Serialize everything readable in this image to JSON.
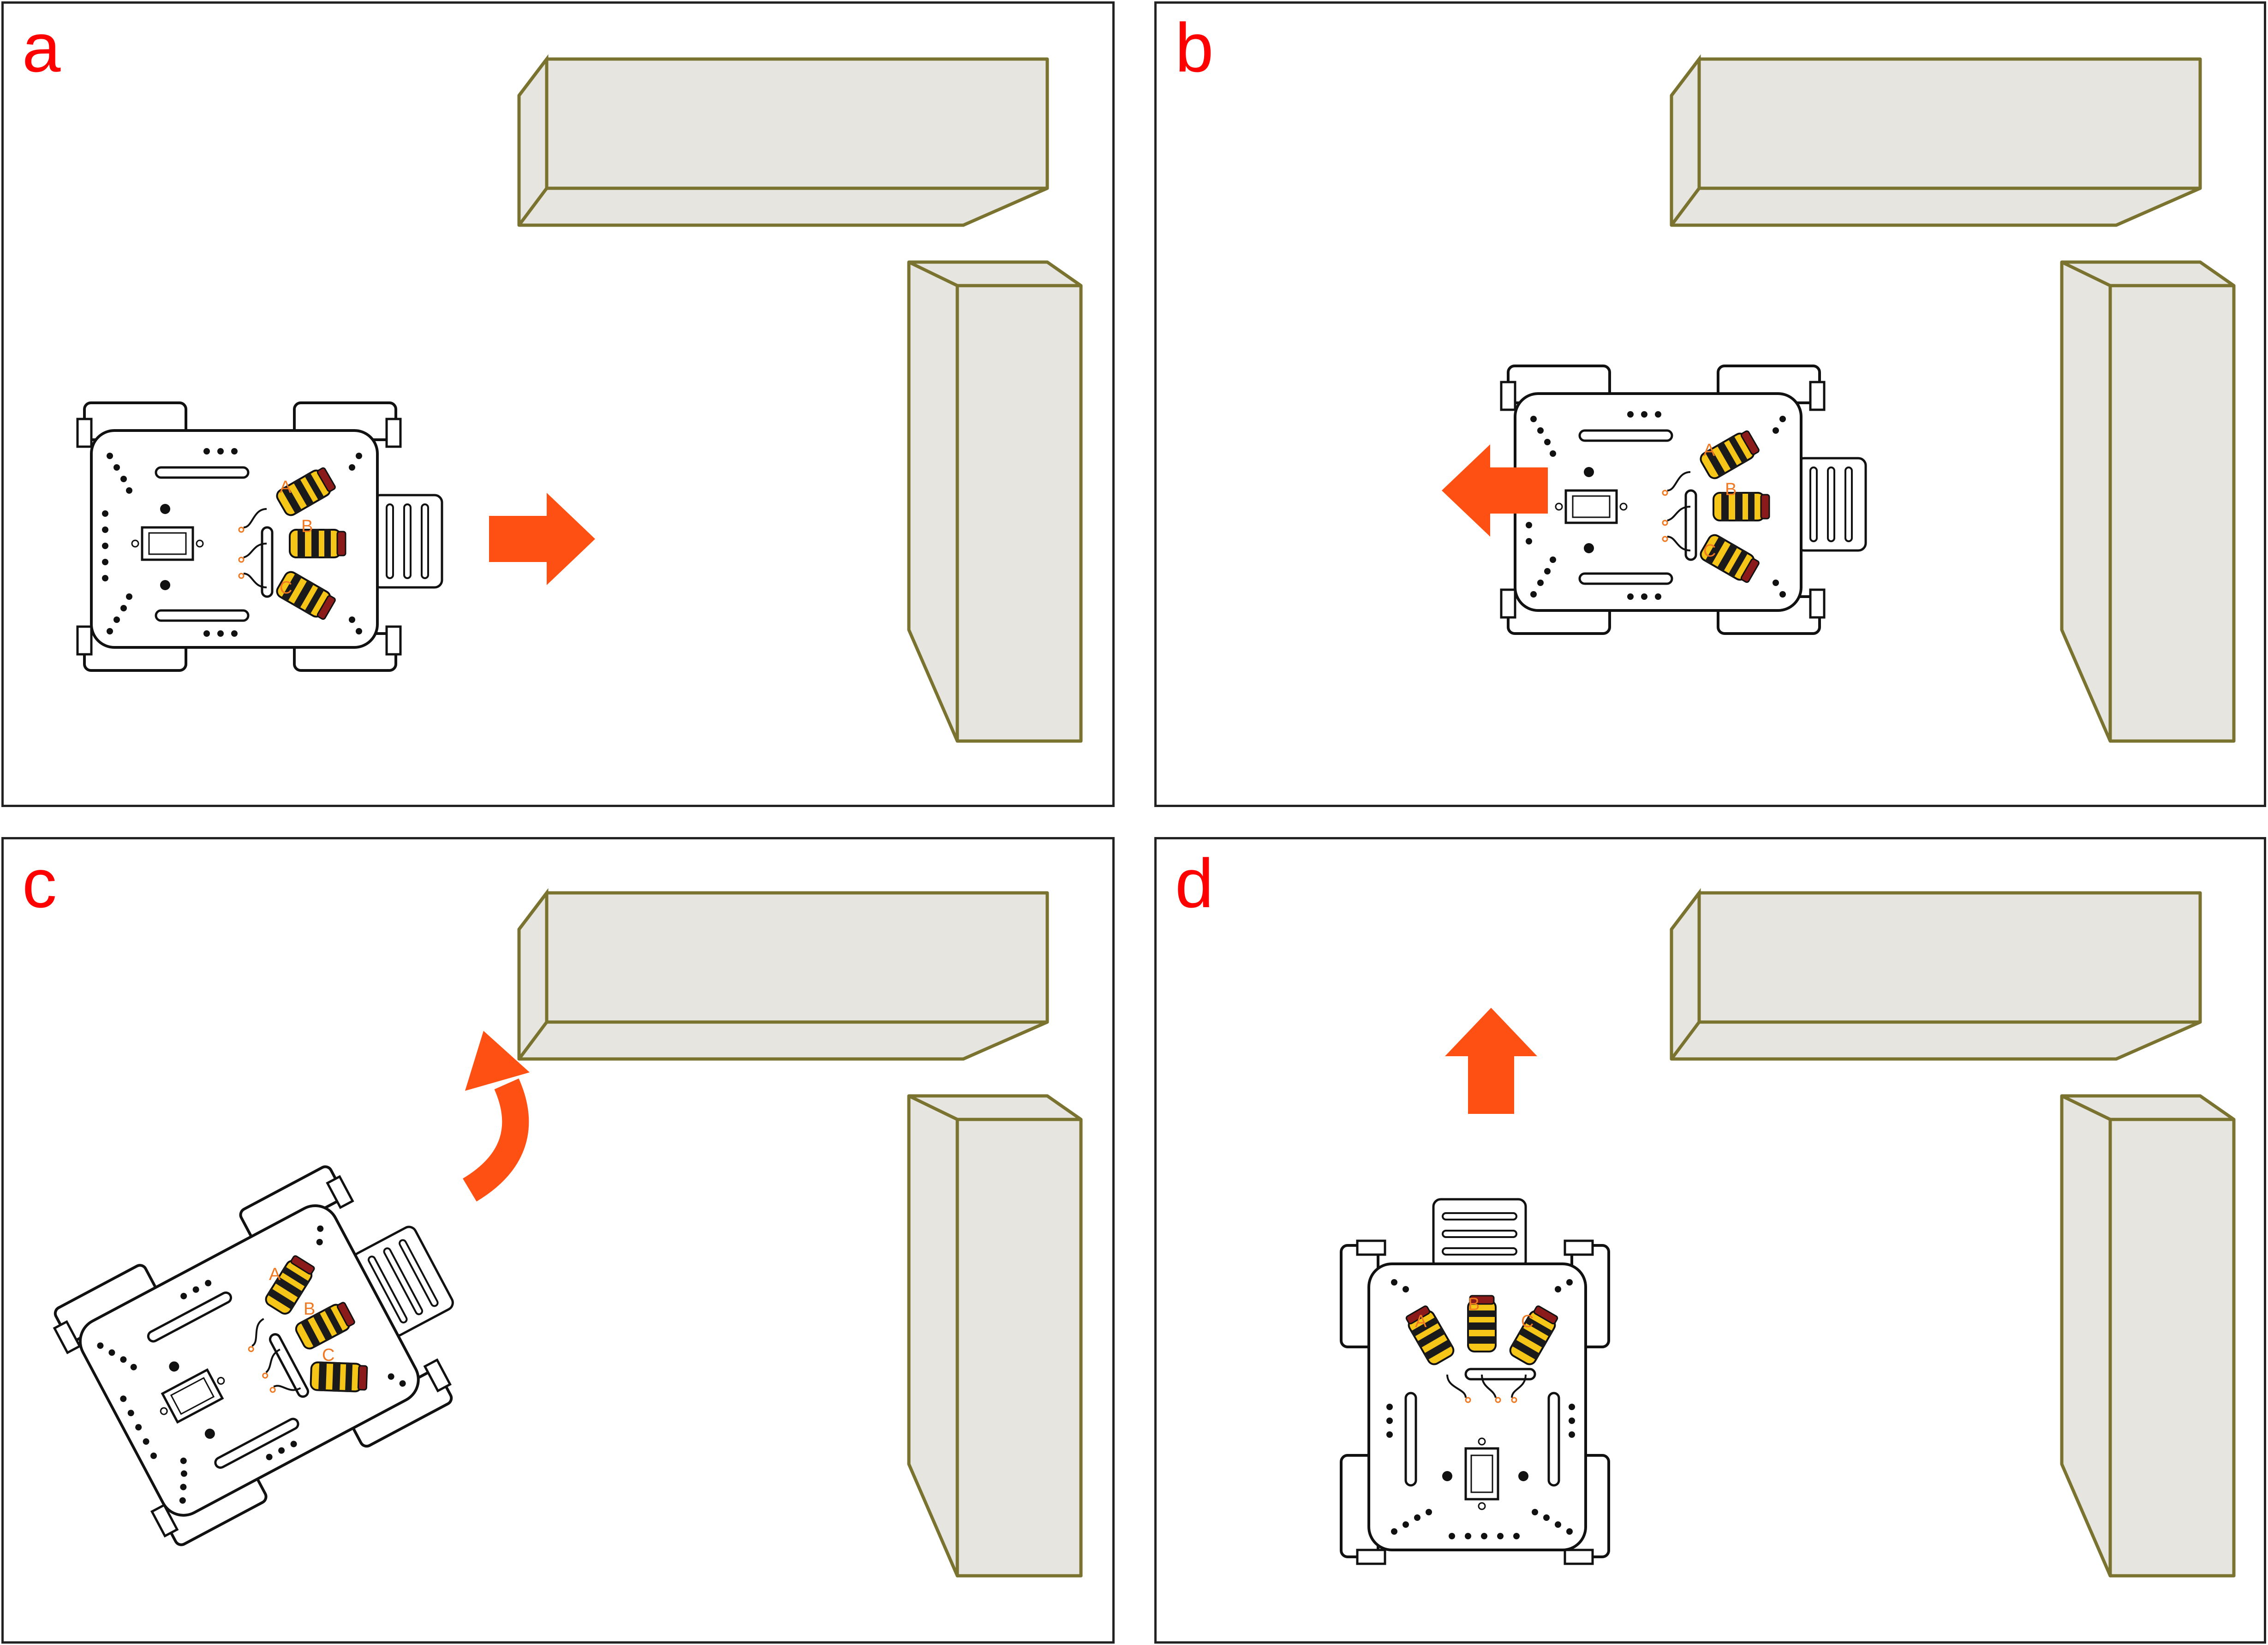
{
  "panels": [
    {
      "id": "a",
      "label": "a",
      "motion": "forward"
    },
    {
      "id": "b",
      "label": "b",
      "motion": "reverse"
    },
    {
      "id": "c",
      "label": "c",
      "motion": "turn-left"
    },
    {
      "id": "d",
      "label": "d",
      "motion": "forward-up"
    }
  ],
  "sensor_labels": {
    "a": "A",
    "b": "B",
    "c": "C"
  },
  "colors": {
    "panel_letter": "#ff0000",
    "arrow": "#ff5014",
    "wall_fill": "#e6e5e0",
    "wall_stroke": "#7a7330",
    "sensor_body": "#f5c518",
    "sensor_band": "#1a1a1a",
    "sensor_tip": "#8b1a1a",
    "sensor_label": "#f07820"
  },
  "icons": {
    "robot": "robot-car-icon",
    "arrow": "arrow-icon",
    "sensor": "ultrasonic-sensor-icon"
  }
}
